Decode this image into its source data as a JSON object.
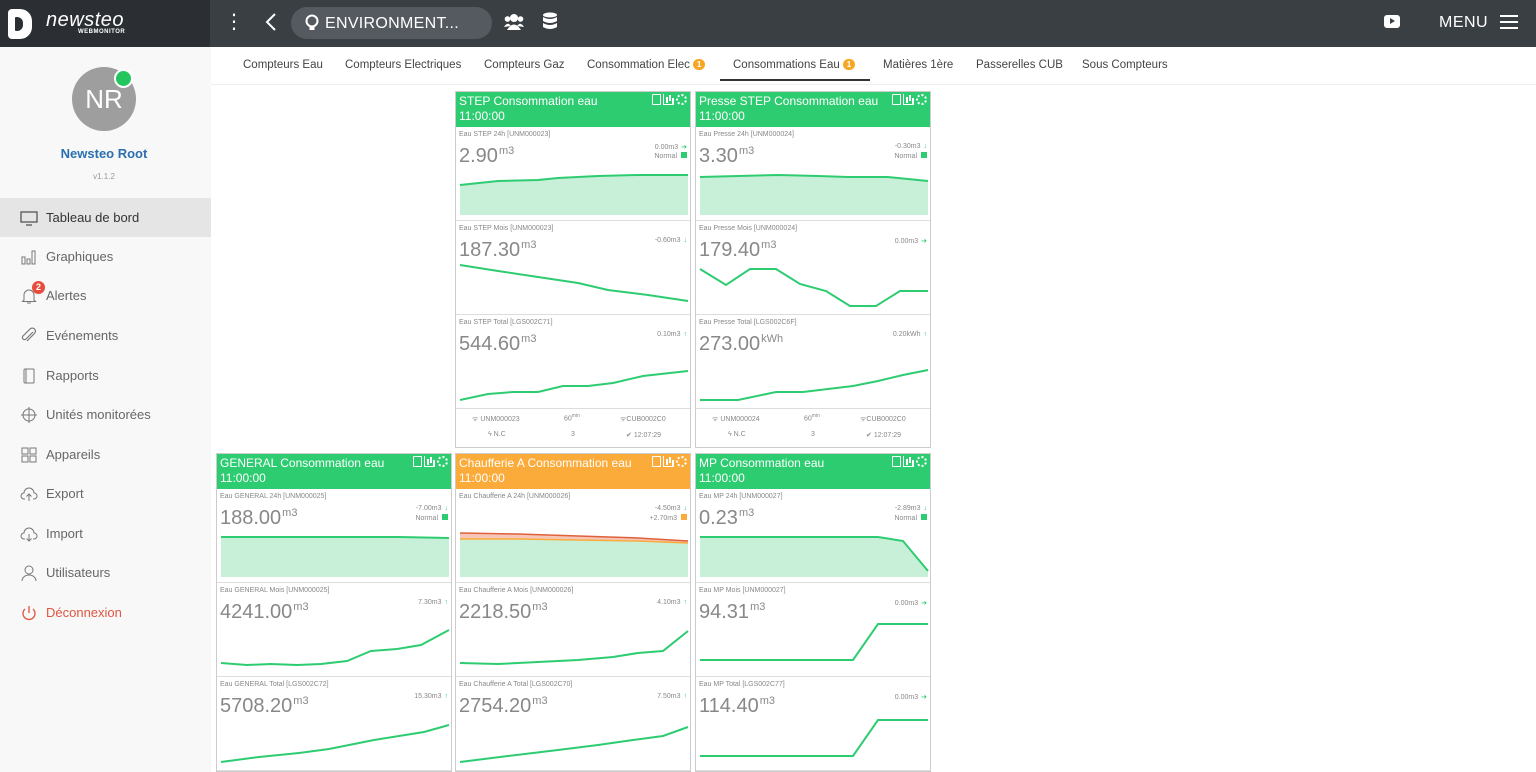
{
  "topbar": {
    "logo_text": "newsteo",
    "logo_sub": "WEBMONITOR",
    "context_label": "ENVIRONMENT...",
    "menu_label": "MENU"
  },
  "colors": {
    "accent_green": "#2ecc71",
    "accent_orange": "#fbab3a",
    "topbar": "#3a3f44",
    "user_blue": "#2a6fb0"
  },
  "profile": {
    "initials": "NR",
    "name": "Newsteo Root",
    "version": "v1.1.2"
  },
  "sidebar": {
    "items": [
      {
        "label": "Tableau de bord",
        "icon": "monitor-icon"
      },
      {
        "label": "Graphiques",
        "icon": "bar-chart-icon"
      },
      {
        "label": "Alertes",
        "icon": "bell-icon",
        "badge": "2"
      },
      {
        "label": "Evénements",
        "icon": "paperclip-icon"
      },
      {
        "label": "Rapports",
        "icon": "book-icon"
      },
      {
        "label": "Unités monitorées",
        "icon": "crosshair-icon"
      },
      {
        "label": "Appareils",
        "icon": "grid-icon"
      },
      {
        "label": "Export",
        "icon": "cloud-upload-icon"
      },
      {
        "label": "Import",
        "icon": "cloud-download-icon"
      },
      {
        "label": "Utilisateurs",
        "icon": "user-icon"
      },
      {
        "label": "Déconnexion",
        "icon": "power-icon"
      }
    ]
  },
  "tabs": [
    {
      "label": "Compteurs Eau"
    },
    {
      "label": "Compteurs Electriques"
    },
    {
      "label": "Compteurs Gaz"
    },
    {
      "label": "Consommation Elec",
      "badge": "1"
    },
    {
      "label": "Consommations Eau",
      "badge": "1",
      "active": true
    },
    {
      "label": "Matières 1ère"
    },
    {
      "label": "Passerelles CUB"
    },
    {
      "label": "Sous Compteurs"
    }
  ],
  "cards": [
    {
      "title": "STEP Consommation eau",
      "time": "11:00:00",
      "metrics": [
        {
          "name": "Eau STEP 24h [UNM000023]",
          "value": "2.90",
          "unit": "m3",
          "delta": "0.00m3",
          "status": "Normal"
        },
        {
          "name": "Eau STEP Mois [UNM000023]",
          "value": "187.30",
          "unit": "m3",
          "delta": "-0.60m3"
        },
        {
          "name": "Eau STEP Total [LGS002C71]",
          "value": "544.60",
          "unit": "m3",
          "delta": "0.10m3"
        }
      ],
      "footer": {
        "sensor": "UNM000023",
        "period": "60",
        "period_unit": "min",
        "gateway": "CUB0002C0",
        "power": "N.C",
        "count": "3",
        "last": "12:07:29"
      }
    },
    {
      "title": "Presse STEP Consommation eau",
      "time": "11:00:00",
      "metrics": [
        {
          "name": "Eau Presse 24h [UNM000024]",
          "value": "3.30",
          "unit": "m3",
          "delta": "-0.30m3",
          "status": "Normal"
        },
        {
          "name": "Eau Presse Mois [UNM000024]",
          "value": "179.40",
          "unit": "m3",
          "delta": "0.00m3"
        },
        {
          "name": "Eau Presse Total [LGS002C6F]",
          "value": "273.00",
          "unit": "kWh",
          "delta": "0.20kWh"
        }
      ],
      "footer": {
        "sensor": "UNM000024",
        "period": "60",
        "period_unit": "min",
        "gateway": "CUB0002C0",
        "power": "N.C",
        "count": "3",
        "last": "12:07:29"
      }
    },
    {
      "title": "GENERAL Consommation eau",
      "time": "11:00:00",
      "metrics": [
        {
          "name": "Eau GENERAL 24h [UNM000025]",
          "value": "188.00",
          "unit": "m3",
          "delta": "-7.00m3",
          "status": "Normal"
        },
        {
          "name": "Eau GENERAL Mois [UNM000025]",
          "value": "4241.00",
          "unit": "m3",
          "delta": "7.30m3"
        },
        {
          "name": "Eau GENERAL Total [LGS002C72]",
          "value": "5708.20",
          "unit": "m3",
          "delta": "15.30m3"
        }
      ]
    },
    {
      "title": "Chaufferie A Consommation eau",
      "time": "11:00:00",
      "metrics": [
        {
          "name": "Eau Chaufferie A 24h [UNM000026]",
          "value": "",
          "unit": "",
          "delta": "-4.50m3",
          "delta2": "+2.70m3"
        },
        {
          "name": "Eau Chaufferie A Mois [UNM000026]",
          "value": "2218.50",
          "unit": "m3",
          "delta": "4.10m3"
        },
        {
          "name": "Eau Chaufferie A Total [LGS002C70]",
          "value": "2754.20",
          "unit": "m3",
          "delta": "7.50m3"
        }
      ]
    },
    {
      "title": "MP Consommation eau",
      "time": "11:00:00",
      "metrics": [
        {
          "name": "Eau MP 24h [UNM000027]",
          "value": "0.23",
          "unit": "m3",
          "delta": "-2.89m3",
          "status": "Normal"
        },
        {
          "name": "Eau MP Mois [UNM000027]",
          "value": "94.31",
          "unit": "m3",
          "delta": "0.00m3"
        },
        {
          "name": "Eau MP Total [LGS002C77]",
          "value": "114.40",
          "unit": "m3",
          "delta": "0.00m3"
        }
      ]
    }
  ]
}
